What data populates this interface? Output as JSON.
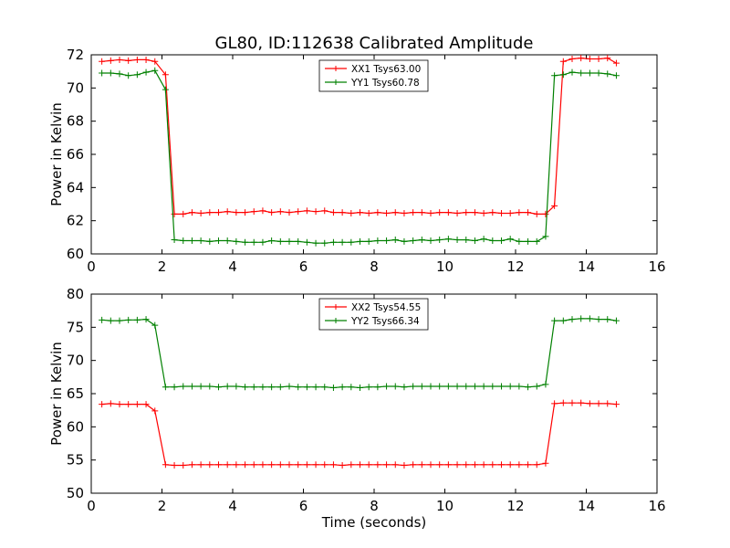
{
  "title": "GL80, ID:112638 Calibrated Amplitude",
  "colors": {
    "red": "#ff0000",
    "green": "#008000"
  },
  "chart_data": [
    {
      "type": "line",
      "title": "GL80, ID:112638 Calibrated Amplitude",
      "xlabel": "",
      "ylabel": "Power in Kelvin",
      "xlim": [
        0,
        16
      ],
      "ylim": [
        60,
        72
      ],
      "xticks": [
        0,
        2,
        4,
        6,
        8,
        10,
        12,
        14,
        16
      ],
      "yticks": [
        60,
        62,
        64,
        66,
        68,
        70,
        72
      ],
      "xtick_labels": [
        "0",
        "2",
        "4",
        "6",
        "8",
        "10",
        "12",
        "14",
        "16"
      ],
      "ytick_labels": [
        "60",
        "62",
        "64",
        "66",
        "68",
        "70",
        "72"
      ],
      "legend_position": "top-center",
      "grid": false,
      "x": [
        0.3,
        0.55,
        0.8,
        1.05,
        1.3,
        1.55,
        1.8,
        2.1,
        2.35,
        2.6,
        2.85,
        3.1,
        3.35,
        3.6,
        3.85,
        4.1,
        4.35,
        4.6,
        4.85,
        5.1,
        5.35,
        5.6,
        5.85,
        6.1,
        6.35,
        6.6,
        6.85,
        7.1,
        7.35,
        7.6,
        7.85,
        8.1,
        8.35,
        8.6,
        8.85,
        9.1,
        9.35,
        9.6,
        9.85,
        10.1,
        10.35,
        10.6,
        10.85,
        11.1,
        11.35,
        11.6,
        11.85,
        12.1,
        12.35,
        12.6,
        12.85,
        13.1,
        13.35,
        13.6,
        13.85,
        14.1,
        14.35,
        14.6,
        14.85
      ],
      "series": [
        {
          "name": "XX1 Tsys63.00",
          "color": "#ff0000",
          "values": [
            71.6,
            71.65,
            71.7,
            71.65,
            71.7,
            71.7,
            71.6,
            70.8,
            62.4,
            62.4,
            62.5,
            62.45,
            62.5,
            62.5,
            62.55,
            62.5,
            62.5,
            62.55,
            62.6,
            62.5,
            62.55,
            62.5,
            62.55,
            62.6,
            62.55,
            62.6,
            62.5,
            62.5,
            62.45,
            62.5,
            62.45,
            62.5,
            62.45,
            62.5,
            62.45,
            62.5,
            62.5,
            62.45,
            62.5,
            62.5,
            62.45,
            62.5,
            62.5,
            62.45,
            62.5,
            62.45,
            62.45,
            62.5,
            62.5,
            62.4,
            62.4,
            62.9,
            71.6,
            71.75,
            71.8,
            71.75,
            71.75,
            71.8,
            71.5
          ]
        },
        {
          "name": "YY1 Tsys60.78",
          "color": "#008000",
          "values": [
            70.9,
            70.9,
            70.85,
            70.75,
            70.8,
            70.95,
            71.05,
            69.9,
            60.85,
            60.8,
            60.8,
            60.8,
            60.75,
            60.8,
            60.8,
            60.75,
            60.7,
            60.7,
            60.7,
            60.8,
            60.75,
            60.75,
            60.75,
            60.7,
            60.65,
            60.65,
            60.7,
            60.7,
            60.7,
            60.75,
            60.75,
            60.8,
            60.8,
            60.85,
            60.75,
            60.8,
            60.85,
            60.8,
            60.85,
            60.9,
            60.85,
            60.85,
            60.8,
            60.9,
            60.8,
            60.8,
            60.9,
            60.75,
            60.75,
            60.75,
            61.05,
            70.75,
            70.8,
            70.95,
            70.9,
            70.9,
            70.9,
            70.85,
            70.75
          ]
        }
      ]
    },
    {
      "type": "line",
      "title": "",
      "xlabel": "Time (seconds)",
      "ylabel": "Power in Kelvin",
      "xlim": [
        0,
        16
      ],
      "ylim": [
        50,
        80
      ],
      "xticks": [
        0,
        2,
        4,
        6,
        8,
        10,
        12,
        14,
        16
      ],
      "yticks": [
        50,
        55,
        60,
        65,
        70,
        75,
        80
      ],
      "xtick_labels": [
        "0",
        "2",
        "4",
        "6",
        "8",
        "10",
        "12",
        "14",
        "16"
      ],
      "ytick_labels": [
        "50",
        "55",
        "60",
        "65",
        "70",
        "75",
        "80"
      ],
      "legend_position": "top-center",
      "grid": false,
      "x": [
        0.3,
        0.55,
        0.8,
        1.05,
        1.3,
        1.55,
        1.8,
        2.1,
        2.35,
        2.6,
        2.85,
        3.1,
        3.35,
        3.6,
        3.85,
        4.1,
        4.35,
        4.6,
        4.85,
        5.1,
        5.35,
        5.6,
        5.85,
        6.1,
        6.35,
        6.6,
        6.85,
        7.1,
        7.35,
        7.6,
        7.85,
        8.1,
        8.35,
        8.6,
        8.85,
        9.1,
        9.35,
        9.6,
        9.85,
        10.1,
        10.35,
        10.6,
        10.85,
        11.1,
        11.35,
        11.6,
        11.85,
        12.1,
        12.35,
        12.6,
        12.85,
        13.1,
        13.35,
        13.6,
        13.85,
        14.1,
        14.35,
        14.6,
        14.85
      ],
      "series": [
        {
          "name": "XX2 Tsys54.55",
          "color": "#ff0000",
          "values": [
            63.4,
            63.5,
            63.4,
            63.4,
            63.4,
            63.4,
            62.4,
            54.3,
            54.2,
            54.2,
            54.3,
            54.3,
            54.3,
            54.3,
            54.3,
            54.3,
            54.3,
            54.3,
            54.3,
            54.3,
            54.3,
            54.3,
            54.3,
            54.3,
            54.3,
            54.3,
            54.3,
            54.2,
            54.3,
            54.3,
            54.3,
            54.3,
            54.3,
            54.3,
            54.2,
            54.3,
            54.3,
            54.3,
            54.3,
            54.3,
            54.3,
            54.3,
            54.3,
            54.3,
            54.3,
            54.3,
            54.3,
            54.3,
            54.3,
            54.3,
            54.5,
            63.5,
            63.6,
            63.6,
            63.6,
            63.5,
            63.5,
            63.5,
            63.4
          ]
        },
        {
          "name": "YY2 Tsys66.34",
          "color": "#008000",
          "values": [
            76.1,
            76.0,
            76.0,
            76.1,
            76.1,
            76.2,
            75.3,
            66.0,
            66.0,
            66.1,
            66.1,
            66.1,
            66.1,
            66.0,
            66.1,
            66.1,
            66.0,
            66.0,
            66.0,
            66.0,
            66.0,
            66.1,
            66.0,
            66.0,
            66.0,
            66.0,
            65.9,
            66.0,
            66.0,
            65.9,
            66.0,
            66.0,
            66.1,
            66.1,
            66.0,
            66.1,
            66.1,
            66.1,
            66.1,
            66.1,
            66.1,
            66.1,
            66.1,
            66.1,
            66.1,
            66.1,
            66.1,
            66.1,
            66.0,
            66.1,
            66.4,
            76.0,
            76.0,
            76.2,
            76.3,
            76.3,
            76.2,
            76.2,
            76.0
          ]
        }
      ]
    }
  ]
}
